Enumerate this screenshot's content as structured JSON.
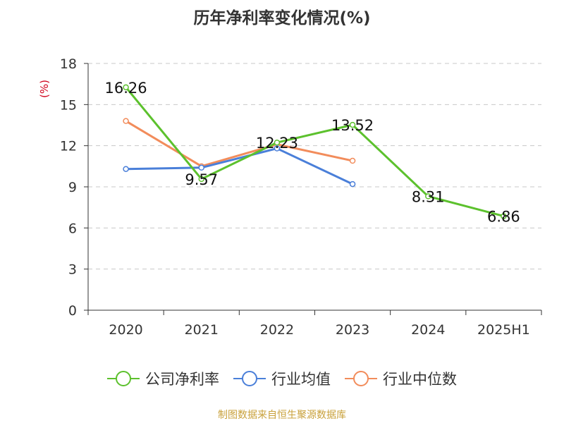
{
  "title": "历年净利率变化情况(%)",
  "footer": "制图数据来自恒生聚源数据库",
  "chart_data": {
    "type": "line",
    "title": "历年净利率变化情况(%)",
    "ylabel": "(%)",
    "xlabel": "",
    "categories": [
      "2020",
      "2021",
      "2022",
      "2023",
      "2024",
      "2025H1"
    ],
    "ylim": [
      0,
      18
    ],
    "yticks": [
      0,
      3,
      6,
      9,
      12,
      15,
      18
    ],
    "grid": true,
    "legend_position": "bottom",
    "series": [
      {
        "name": "公司净利率",
        "color": "#5cc12d",
        "values": [
          16.26,
          9.57,
          12.23,
          13.52,
          8.31,
          6.86
        ],
        "labels": [
          "16.26",
          "9.57",
          "12.23",
          "13.52",
          "8.31",
          "6.86"
        ]
      },
      {
        "name": "行业均值",
        "color": "#4a7fd9",
        "values": [
          10.3,
          10.4,
          11.8,
          9.2,
          null,
          null
        ]
      },
      {
        "name": "行业中位数",
        "color": "#f28c5b",
        "values": [
          13.8,
          10.5,
          12.1,
          10.9,
          null,
          null
        ]
      }
    ]
  }
}
